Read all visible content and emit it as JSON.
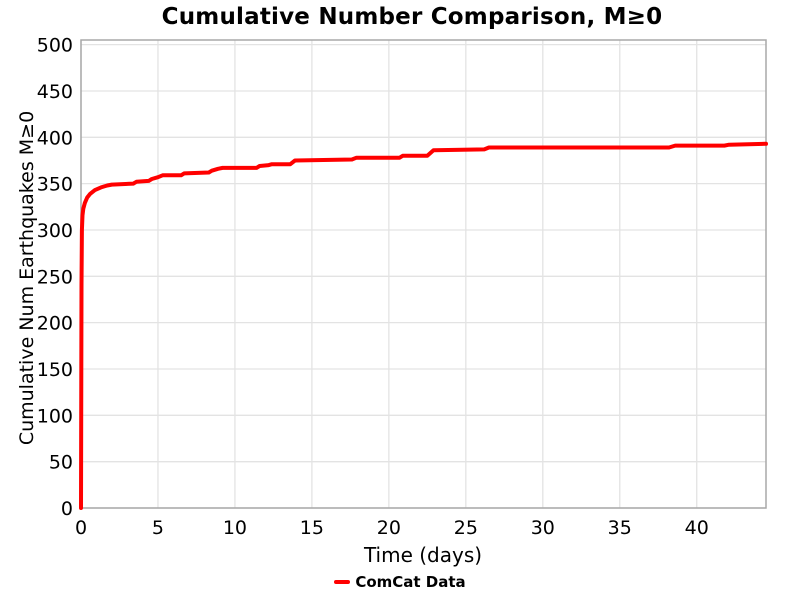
{
  "chart_data": {
    "type": "line",
    "title": "Cumulative Number Comparison, M≥0",
    "xlabel": "Time (days)",
    "ylabel": "Cumulative Num Earthquakes M≥0",
    "xlim": [
      0,
      44.5
    ],
    "ylim": [
      0,
      505
    ],
    "x_ticks": [
      0,
      5,
      10,
      15,
      20,
      25,
      30,
      35,
      40
    ],
    "y_ticks": [
      0,
      50,
      100,
      150,
      200,
      250,
      300,
      350,
      400,
      450,
      500
    ],
    "grid": true,
    "legend_position": "bottom-center",
    "series": [
      {
        "name": "ComCat Data",
        "color": "#ff0000",
        "x": [
          0,
          0.03,
          0.06,
          0.1,
          0.15,
          0.25,
          0.4,
          0.6,
          0.9,
          1.3,
          1.7,
          2.0,
          3.4,
          3.6,
          4.4,
          4.6,
          5.0,
          5.3,
          6.5,
          6.7,
          8.3,
          8.5,
          8.9,
          9.2,
          11.4,
          11.6,
          12.2,
          12.4,
          13.6,
          13.9,
          17.6,
          17.9,
          20.7,
          20.9,
          22.5,
          22.9,
          26.2,
          26.5,
          38.2,
          38.6,
          41.8,
          42.1,
          44.5
        ],
        "y": [
          0,
          240,
          300,
          316,
          323,
          329,
          335,
          339,
          343,
          346,
          348,
          349,
          350,
          352,
          353,
          355,
          357,
          359,
          359,
          361,
          362,
          364,
          366,
          367,
          367,
          369,
          370,
          371,
          371,
          375,
          376,
          378,
          378,
          380,
          380,
          386,
          387,
          389,
          389,
          391,
          391,
          392,
          393
        ]
      }
    ]
  },
  "colors": {
    "line": "#ff0000",
    "grid": "#e3e3e3",
    "spine": "#a8a8a8",
    "text": "#000000",
    "background": "#ffffff"
  }
}
